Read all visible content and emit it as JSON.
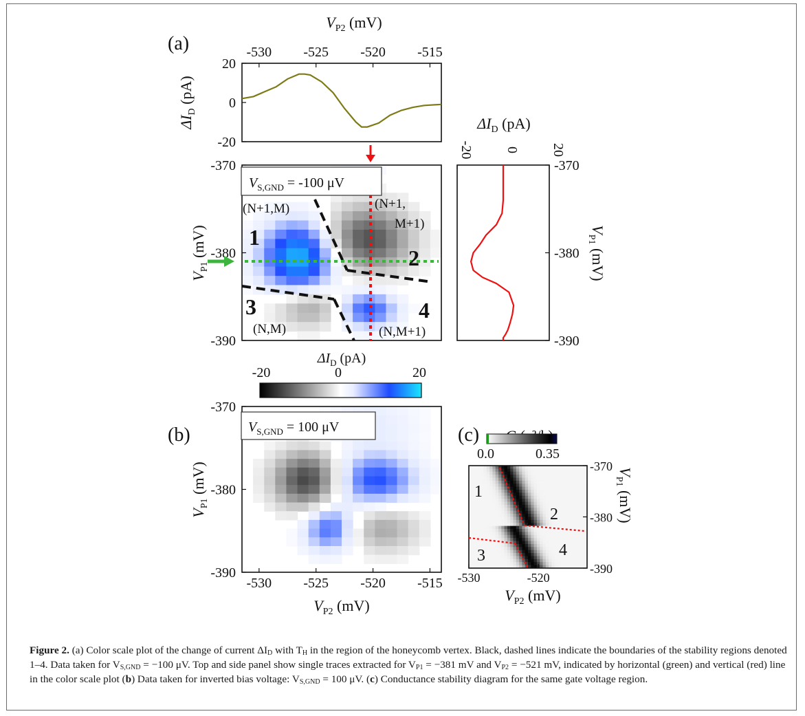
{
  "figure": {
    "panel_a_label": "(a)",
    "panel_b_label": "(b)",
    "panel_c_label": "(c)",
    "axis_vp2": {
      "sym": "V",
      "sub": "P2",
      "unit": " (mV)"
    },
    "axis_vp1": {
      "sym": "V",
      "sub": "P1",
      "unit": " (mV)"
    },
    "axis_di": {
      "sym": "ΔI",
      "sub": "D",
      "unit": " (pA)"
    },
    "axis_g": {
      "sym": "G",
      "unit": " (e²/h)"
    },
    "annotation_a": {
      "sym": "V",
      "sub": "S,GND",
      "value": " = -100 μV"
    },
    "annotation_b": {
      "sym": "V",
      "sub": "S,GND",
      "value": " = 100 μV"
    },
    "colorbar_a_ticks": [
      "-20",
      "0",
      "20"
    ],
    "colorbar_c_ticks": [
      "0.0",
      "0.35"
    ],
    "region_labels_a": [
      "1",
      "2",
      "3",
      "4"
    ],
    "region_labels_c": [
      "1",
      "2",
      "3",
      "4"
    ],
    "charge_states": [
      "(N+1,M)",
      "(N+1,",
      "M+1)",
      "(N,M)",
      "(N,M+1)"
    ],
    "vp2_ticks": [
      "-530",
      "-525",
      "-520",
      "-515"
    ],
    "vp2_ticks_c": [
      "-530",
      "-520"
    ],
    "vp1_ticks": [
      "-370",
      "-380",
      "-390"
    ],
    "vp1_ticks_c": [
      "-370",
      "-380",
      "-390"
    ],
    "di_ticks_top": [
      "20",
      "0",
      "-20"
    ],
    "di_ticks_side": [
      "-20",
      "0",
      "20"
    ],
    "colors": {
      "trace_top": "#7d7a17",
      "trace_side": "#ee1111",
      "marker_green": "#3db43d",
      "marker_red": "#ee1111",
      "dashed_black": "#111111",
      "cmap_negative": "#000000",
      "cmap_positive": "#1e4cff",
      "cmap_max": "#19e6ff",
      "cmap_zero": "#ffffff"
    }
  },
  "caption": {
    "lead": "Figure 2.",
    "t1": " (a) Color scale plot of the change of current ΔI",
    "t1s": "D",
    "t2": " with T",
    "t2s": "H",
    "t3": " in the region of the honeycomb vertex. Black, dashed lines indicate the boundaries of the stability regions denoted 1–4. Data taken for V",
    "t3s": "S,GND",
    "t4": " = −100 μV. Top and side panel show single traces extracted for V",
    "t4s": "P1",
    "t5": " = −381 mV and V",
    "t5s": "P2",
    "t6": " = −521 mV, indicated by horizontal (green) and vertical (red) line in the color scale plot (",
    "t6b": "b",
    "t7": ") Data taken for inverted bias voltage: V",
    "t7s": "S,GND",
    "t8": " = 100 μV. (",
    "t8b": "c",
    "t9": ") Conductance stability diagram for the same gate voltage region."
  },
  "chart_data": [
    {
      "type": "line",
      "panel": "a-top",
      "title": "",
      "xlabel": "VP2 (mV)",
      "ylabel": "ΔID (pA)",
      "xlim": [
        -531.5,
        -514
      ],
      "ylim": [
        -20,
        20
      ],
      "series": [
        {
          "x": [
            -531.5,
            -530.5,
            -529.5,
            -528.5,
            -527.5,
            -526.5,
            -526,
            -525.5,
            -524.5,
            -523.5,
            -522.5,
            -521.5,
            -521,
            -520.5,
            -519.5,
            -518.5,
            -517.5,
            -516.5,
            -515.5,
            -514
          ],
          "values": [
            2,
            3,
            5.5,
            8,
            12,
            14.5,
            14.5,
            14,
            10.5,
            5,
            -3,
            -10,
            -12.5,
            -12.5,
            -10.5,
            -6.5,
            -4,
            -2.5,
            -1.5,
            -1
          ]
        }
      ]
    },
    {
      "type": "line",
      "panel": "a-side",
      "title": "",
      "xlabel": "ΔID (pA)",
      "ylabel": "VP1 (mV)",
      "xlim": [
        -20,
        20
      ],
      "ylim": [
        -390,
        -370
      ],
      "series": [
        {
          "x": [
            0,
            0,
            0,
            -0.5,
            -3,
            -7.5,
            -10,
            -13,
            -14,
            -13,
            -9,
            -3,
            2.5,
            4.5,
            4,
            3,
            2,
            1,
            0,
            0
          ],
          "values": [
            -370,
            -372,
            -374,
            -375.5,
            -376.8,
            -378,
            -379,
            -380,
            -381,
            -382,
            -382.8,
            -383.5,
            -384.5,
            -386,
            -387,
            -388,
            -388.8,
            -389.3,
            -389.7,
            -390
          ]
        }
      ]
    },
    {
      "type": "heatmap",
      "panel": "a",
      "title": "",
      "xlabel": "VP2 (mV)",
      "ylabel": "VP1 (mV)",
      "xlim": [
        -531.5,
        -514
      ],
      "ylim": [
        -390,
        -370
      ],
      "zlabel": "ΔID (pA)",
      "zlim": [
        -20,
        20
      ],
      "features": [
        {
          "region": "1",
          "x": -526.5,
          "y": -380.5,
          "peak": 18
        },
        {
          "region": "2",
          "x": -520.5,
          "y": -378.5,
          "peak": -14
        },
        {
          "region": "3",
          "x": -525.5,
          "y": -386.2,
          "peak": -8
        },
        {
          "region": "4",
          "x": -520.5,
          "y": -386.5,
          "peak": 12
        }
      ],
      "markers": {
        "horizontal_vp1": -381,
        "vertical_vp2": -521
      }
    },
    {
      "type": "heatmap",
      "panel": "b",
      "title": "",
      "xlabel": "VP2 (mV)",
      "ylabel": "VP1 (mV)",
      "xlim": [
        -531.5,
        -514
      ],
      "ylim": [
        -390,
        -370
      ],
      "zlabel": "ΔID (pA)",
      "zlim": [
        -20,
        20
      ],
      "features": [
        {
          "x": -525.8,
          "y": -378.9,
          "peak": -15
        },
        {
          "x": -519.8,
          "y": -378.9,
          "peak": 12
        },
        {
          "x": -523.8,
          "y": -384.7,
          "peak": 11
        },
        {
          "x": -519.2,
          "y": -384.7,
          "peak": -7
        }
      ]
    },
    {
      "type": "heatmap",
      "panel": "c",
      "title": "",
      "xlabel": "VP2 (mV)",
      "ylabel": "VP1 (mV)",
      "xlim": [
        -530,
        -513
      ],
      "ylim": [
        -390,
        -370
      ],
      "zlabel": "G (e²/h)",
      "zlim": [
        0.0,
        0.35
      ]
    }
  ]
}
